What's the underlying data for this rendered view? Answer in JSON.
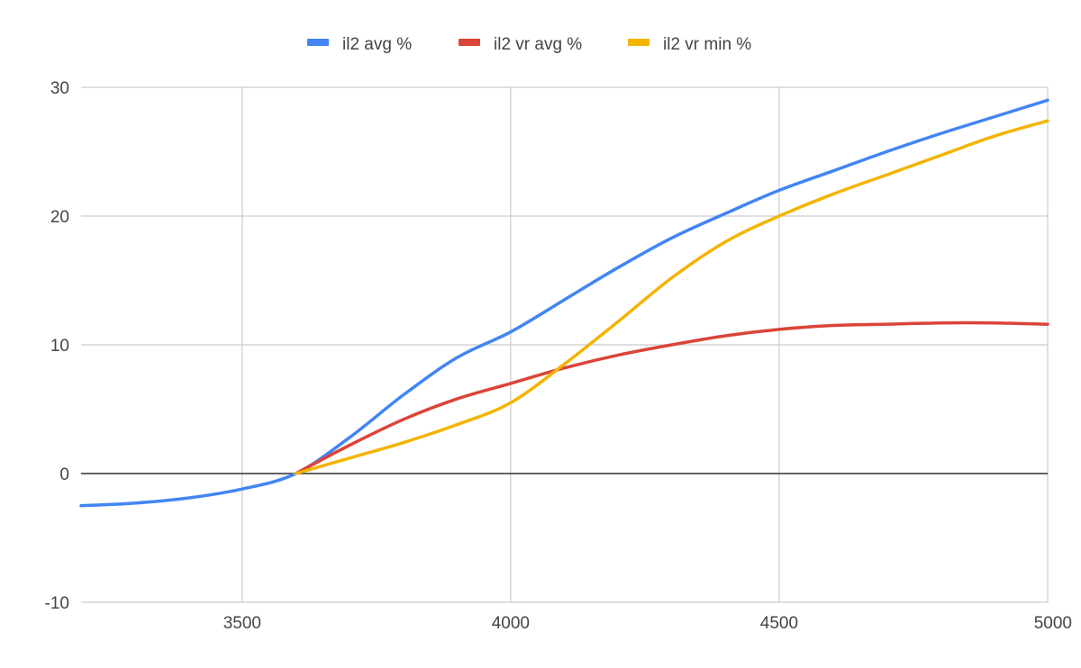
{
  "chart_data": {
    "type": "line",
    "title": "",
    "xlabel": "",
    "ylabel": "",
    "xlim": [
      3200,
      5000
    ],
    "ylim": [
      -10,
      30
    ],
    "x_ticks": [
      3500,
      4000,
      4500,
      5000
    ],
    "y_ticks": [
      30,
      20,
      10,
      0,
      -10
    ],
    "grid": true,
    "legend_position": "top",
    "series": [
      {
        "name": "il2 avg %",
        "color": "#4285F4",
        "points": [
          [
            3200,
            -2.5
          ],
          [
            3300,
            -2.3
          ],
          [
            3400,
            -1.9
          ],
          [
            3500,
            -1.2
          ],
          [
            3600,
            0
          ],
          [
            3700,
            2.8
          ],
          [
            3800,
            6.1
          ],
          [
            3900,
            9.0
          ],
          [
            4000,
            11.0
          ],
          [
            4100,
            13.5
          ],
          [
            4200,
            16.0
          ],
          [
            4300,
            18.3
          ],
          [
            4400,
            20.2
          ],
          [
            4500,
            22.0
          ],
          [
            4600,
            23.5
          ],
          [
            4700,
            25.0
          ],
          [
            4800,
            26.4
          ],
          [
            4900,
            27.7
          ],
          [
            5000,
            29.0
          ]
        ]
      },
      {
        "name": "il2 vr avg %",
        "color": "#DB4437",
        "points": [
          [
            3600,
            0
          ],
          [
            3700,
            2.2
          ],
          [
            3800,
            4.2
          ],
          [
            3900,
            5.8
          ],
          [
            4000,
            7.0
          ],
          [
            4100,
            8.2
          ],
          [
            4200,
            9.2
          ],
          [
            4300,
            10.0
          ],
          [
            4400,
            10.7
          ],
          [
            4500,
            11.2
          ],
          [
            4600,
            11.5
          ],
          [
            4700,
            11.6
          ],
          [
            4800,
            11.7
          ],
          [
            4900,
            11.7
          ],
          [
            5000,
            11.6
          ]
        ]
      },
      {
        "name": "il2 vr min %",
        "color": "#F4B400",
        "points": [
          [
            3600,
            0
          ],
          [
            3700,
            1.2
          ],
          [
            3800,
            2.4
          ],
          [
            3900,
            3.8
          ],
          [
            4000,
            5.5
          ],
          [
            4100,
            8.5
          ],
          [
            4200,
            11.8
          ],
          [
            4300,
            15.2
          ],
          [
            4400,
            18.0
          ],
          [
            4500,
            20.0
          ],
          [
            4600,
            21.7
          ],
          [
            4700,
            23.2
          ],
          [
            4800,
            24.7
          ],
          [
            4900,
            26.2
          ],
          [
            5000,
            27.4
          ]
        ]
      }
    ]
  }
}
